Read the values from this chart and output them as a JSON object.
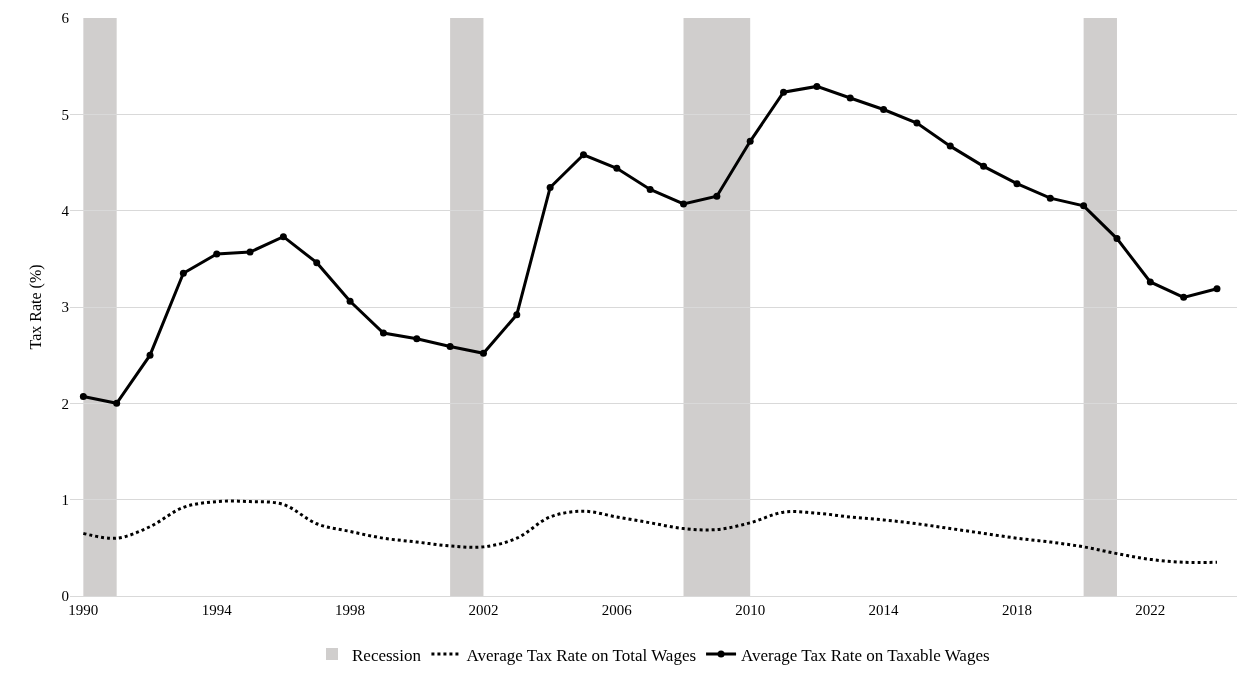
{
  "chart_data": {
    "type": "line",
    "ylabel": "Tax Rate (%)",
    "x": [
      1990,
      1991,
      1992,
      1993,
      1994,
      1995,
      1996,
      1997,
      1998,
      1999,
      2000,
      2001,
      2002,
      2003,
      2004,
      2005,
      2006,
      2007,
      2008,
      2009,
      2010,
      2011,
      2012,
      2013,
      2014,
      2015,
      2016,
      2017,
      2018,
      2019,
      2020,
      2021,
      2022,
      2023,
      2024
    ],
    "series": [
      {
        "name": "Average Tax Rate on Total Wages",
        "color": "#000000",
        "line_style": "dotted",
        "marker": "none",
        "values": [
          0.65,
          0.6,
          0.72,
          0.92,
          0.98,
          0.98,
          0.95,
          0.75,
          0.67,
          0.6,
          0.56,
          0.52,
          0.51,
          0.6,
          0.82,
          0.88,
          0.82,
          0.76,
          0.7,
          0.69,
          0.76,
          0.87,
          0.86,
          0.82,
          0.79,
          0.75,
          0.7,
          0.65,
          0.6,
          0.56,
          0.51,
          0.44,
          0.38,
          0.35,
          0.35
        ]
      },
      {
        "name": "Average Tax Rate on Taxable Wages",
        "color": "#000000",
        "line_style": "solid",
        "marker": "circle",
        "values": [
          2.07,
          2.0,
          2.5,
          3.35,
          3.55,
          3.57,
          3.73,
          3.46,
          3.06,
          2.73,
          2.67,
          2.59,
          2.52,
          2.92,
          4.24,
          4.58,
          4.44,
          4.22,
          4.07,
          4.15,
          4.72,
          5.23,
          5.29,
          5.17,
          5.05,
          4.91,
          4.67,
          4.46,
          4.28,
          4.13,
          4.05,
          3.71,
          3.26,
          3.1,
          3.19
        ]
      }
    ],
    "bands": [
      {
        "axis": "x",
        "from": 1990,
        "to": 1991,
        "label": "Recession",
        "color": "#d0cecd"
      },
      {
        "axis": "x",
        "from": 2001,
        "to": 2002,
        "color": "#d0cecd"
      },
      {
        "axis": "x",
        "from": 2008,
        "to": 2010,
        "color": "#d0cecd"
      },
      {
        "axis": "x",
        "from": 2020,
        "to": 2021,
        "color": "#d0cecd"
      }
    ],
    "xlim": [
      1989.6,
      2024.6
    ],
    "xticks": [
      1990,
      1994,
      1998,
      2002,
      2006,
      2010,
      2014,
      2018,
      2022
    ],
    "ylim": [
      0,
      6
    ],
    "yticks": [
      0,
      1,
      2,
      3,
      4,
      5,
      6
    ],
    "grid": "y",
    "legend": "bottom"
  }
}
